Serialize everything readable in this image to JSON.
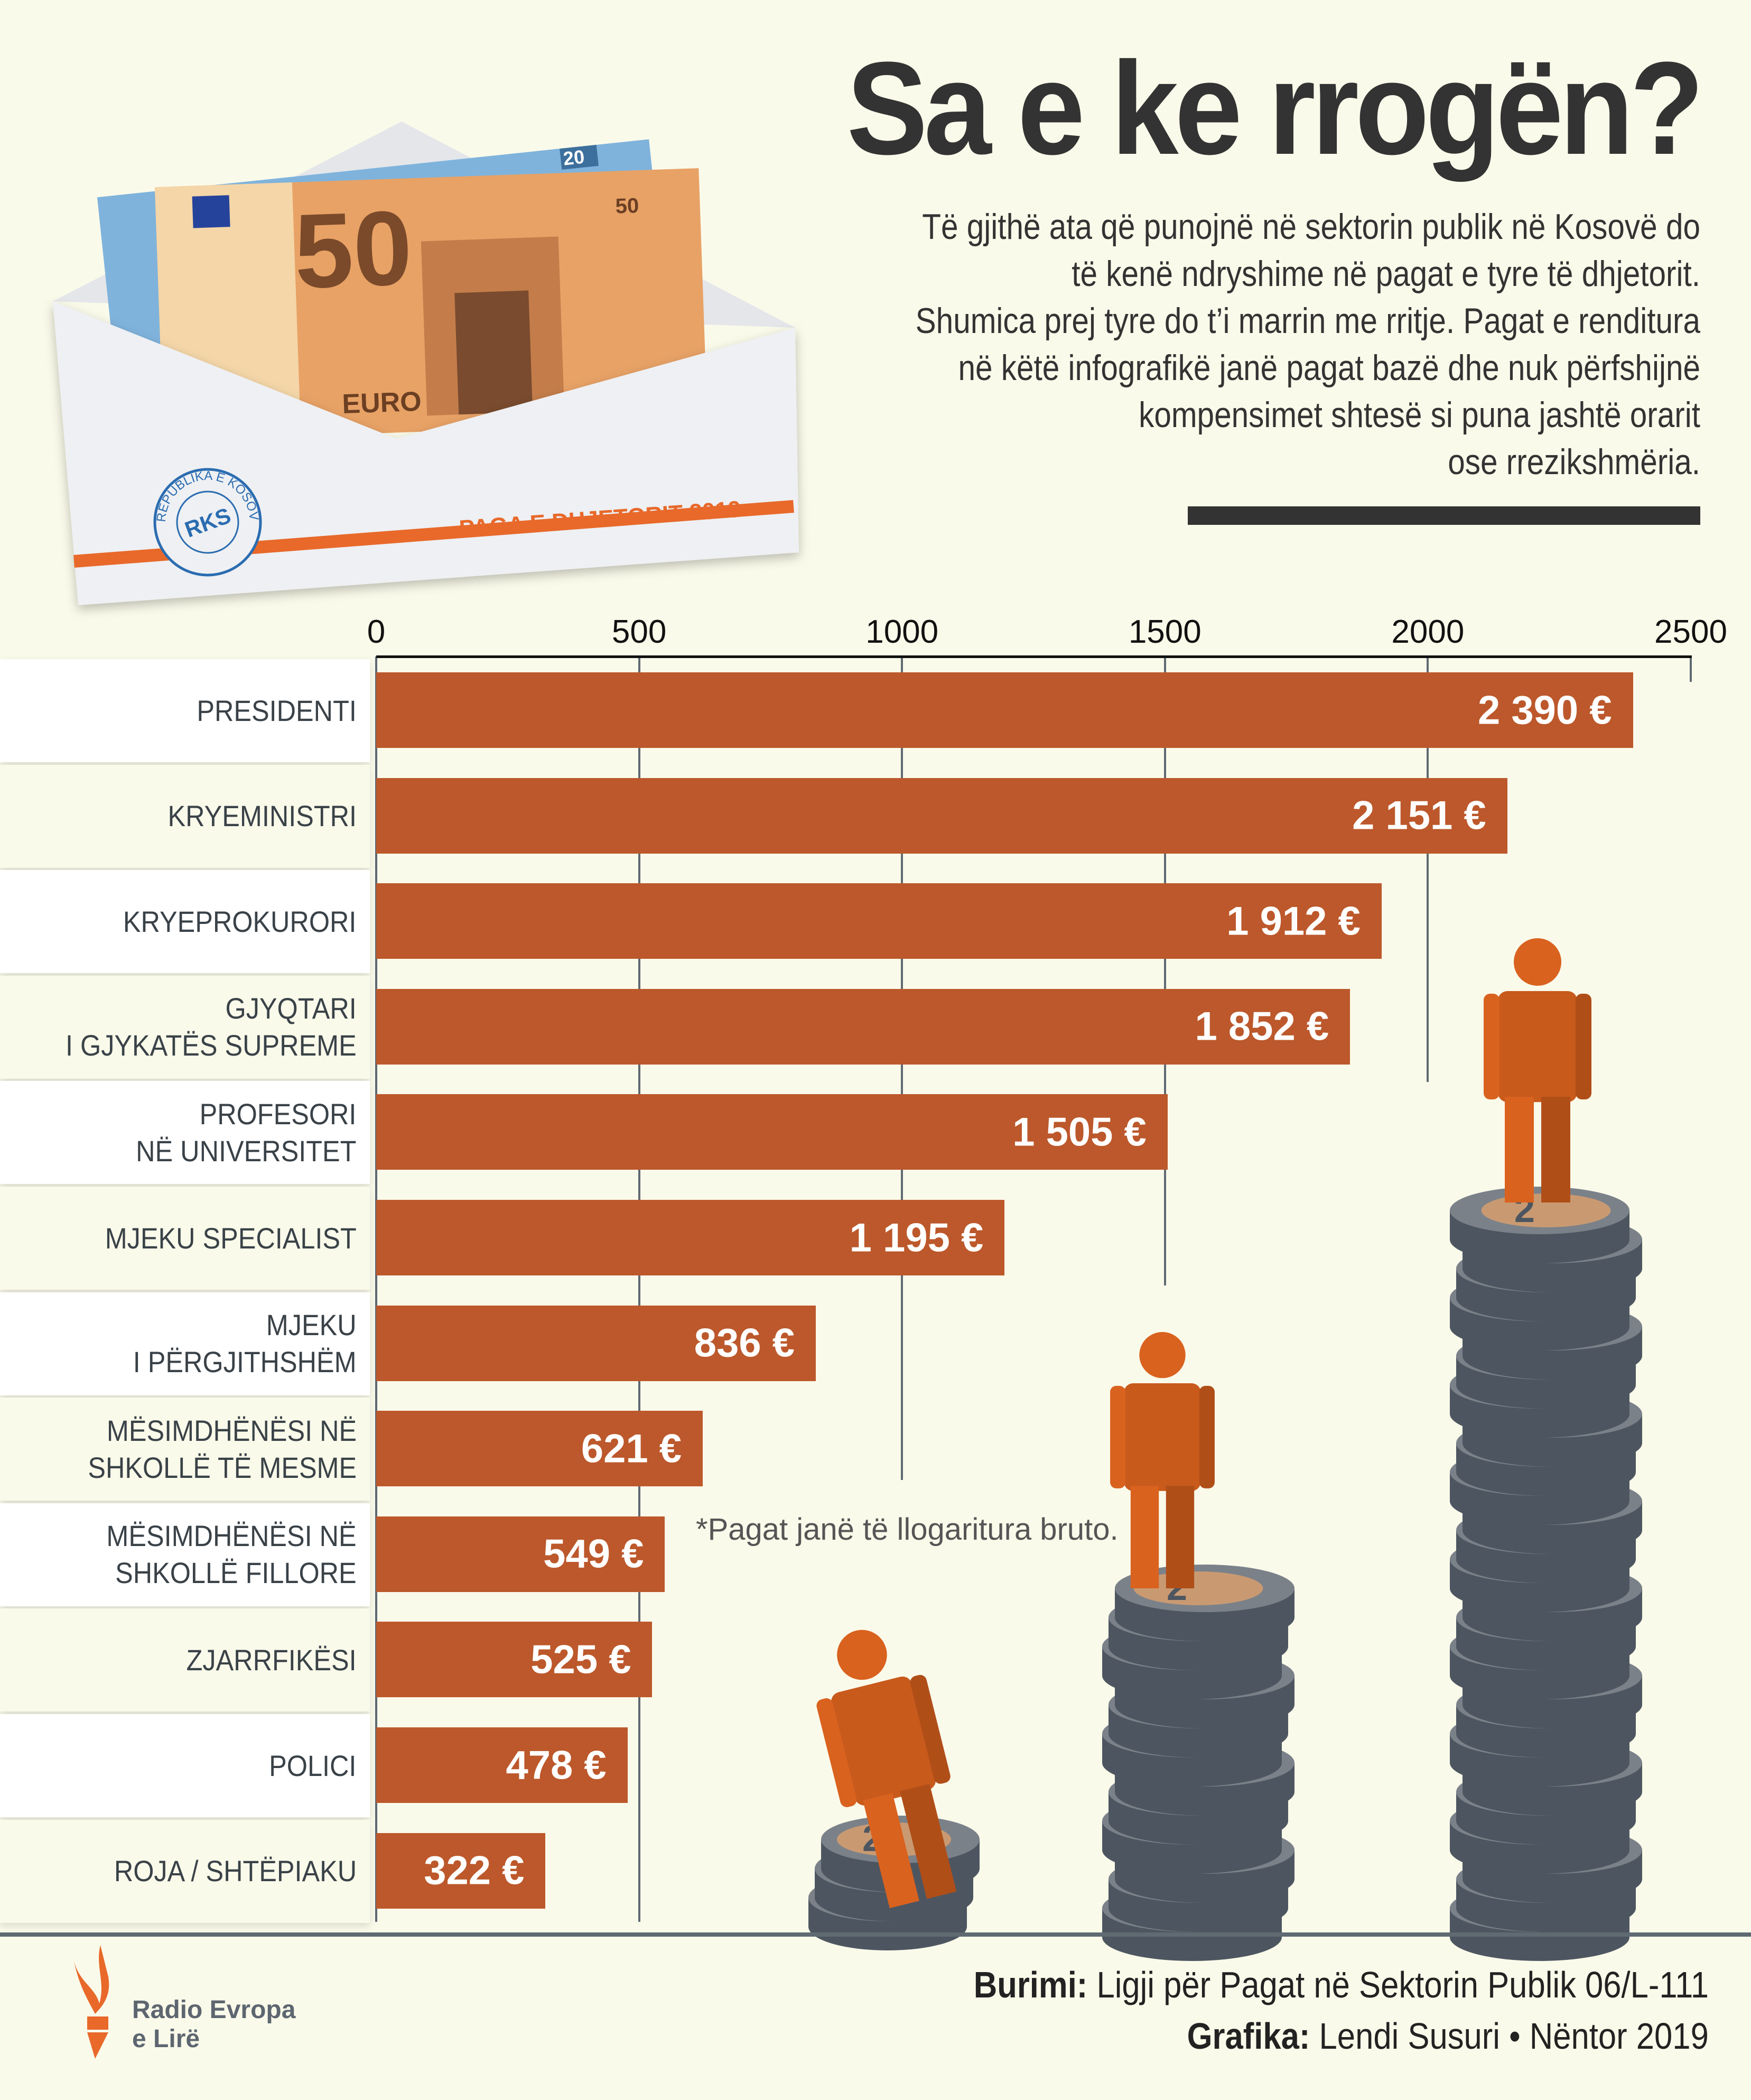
{
  "header": {
    "title": "Sa e ke rrogën?",
    "intro_lines": [
      "Të gjithë ata që punojnë në sektorin publik në Kosovë do",
      "të kenë ndryshime në pagat e tyre të dhjetorit.",
      "Shumica prej tyre do t’i marrin me rritje. Pagat e renditura",
      "në këtë infografikë janë pagat bazë dhe nuk përfshijnë",
      "kompensimet shtesë si puna jashtë orarit",
      "ose rrezikshmëria."
    ]
  },
  "illustration": {
    "envelope_text": "PAGA E DHJETORIT 2019",
    "stamp_center": "RKS",
    "stamp_ring": "REPUBLIKA E KOSOVËS",
    "banknote_value": "50",
    "banknote_small_value": "20",
    "banknote_currency": "EURO",
    "coin_value": "2"
  },
  "chart_data": {
    "type": "bar",
    "orientation": "horizontal",
    "categories": [
      "PRESIDENTI",
      "KRYEMINISTRI",
      "KRYEPROKURORI",
      "GJYQTARI\nI GJYKATËS SUPREME",
      "PROFESORI\nNË UNIVERSITET",
      "MJEKU SPECIALIST",
      "MJEKU\nI PËRGJITHSHËM",
      "MËSIMDHËNËSI NË\nSHKOLLË TË MESME",
      "MËSIMDHËNËSI NË\nSHKOLLË FILLORE",
      "ZJARRFIKËSI",
      "POLICI",
      "ROJA / SHTËPIAKU"
    ],
    "values": [
      2390,
      2151,
      1912,
      1852,
      1505,
      1195,
      836,
      621,
      549,
      525,
      478,
      322
    ],
    "value_labels": [
      "2 390 €",
      "2 151 €",
      "1 912 €",
      "1 852 €",
      "1 505 €",
      "1 195 €",
      "836 €",
      "621 €",
      "549 €",
      "525 €",
      "478 €",
      "322 €"
    ],
    "xlim": [
      0,
      2500
    ],
    "x_ticks": [
      "0",
      "500",
      "1000",
      "1500",
      "2000",
      "2500"
    ],
    "axis_position": "top",
    "grid": true,
    "bar_color": "#BC582B",
    "note": "*Pagat janë të llogaritura bruto."
  },
  "footer": {
    "source_label": "Burimi:",
    "source_text": "Ligji për Pagat në Sektorin Publik 06/L-111",
    "graphics_label": "Grafika:",
    "graphics_text": "Lendi Susuri • Nëntor 2019",
    "logo_line1": "Radio Evropa",
    "logo_line2": "e Lirë",
    "logo_color": "#E8692A"
  }
}
